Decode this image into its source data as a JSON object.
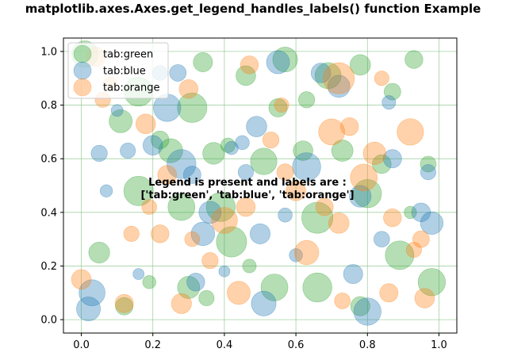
{
  "chart_data": {
    "type": "scatter",
    "title": "matplotlib.axes.Axes.get_legend_handles_labels() function Example",
    "xlabel": "",
    "ylabel": "",
    "xlim": [
      -0.05,
      1.05
    ],
    "ylim": [
      -0.05,
      1.05
    ],
    "x_ticks": [
      "0.0",
      "0.2",
      "0.4",
      "0.6",
      "0.8",
      "1.0"
    ],
    "y_ticks": [
      "0.0",
      "0.2",
      "0.4",
      "0.6",
      "0.8",
      "1.0"
    ],
    "grid": true,
    "grid_color": "#7fbf7f",
    "legend": {
      "placement": "upper left",
      "entries": [
        "tab:green",
        "tab:blue",
        "tab:orange"
      ]
    },
    "annotation": {
      "x": 0.47,
      "y": 0.48,
      "lines": [
        "Legend is present and labels are :",
        "['tab:green', 'tab:blue', 'tab:orange']"
      ]
    },
    "series": [
      {
        "name": "tab:green",
        "color": "#2ca02c",
        "alpha": 0.35,
        "points": [
          [
            0.01,
            0.99,
            6.2
          ],
          [
            0.11,
            0.74,
            5.4
          ],
          [
            0.16,
            0.85,
            6.8
          ],
          [
            0.05,
            0.25,
            4.9
          ],
          [
            0.16,
            0.48,
            6.9
          ],
          [
            0.22,
            0.67,
            4.2
          ],
          [
            0.28,
            0.42,
            6.3
          ],
          [
            0.31,
            0.79,
            6.9
          ],
          [
            0.34,
            0.96,
            4.5
          ],
          [
            0.37,
            0.62,
            5.1
          ],
          [
            0.39,
            0.42,
            6.8
          ],
          [
            0.42,
            0.29,
            7.1
          ],
          [
            0.46,
            0.91,
            4.6
          ],
          [
            0.51,
            0.59,
            6.2
          ],
          [
            0.55,
            0.79,
            4.3
          ],
          [
            0.57,
            0.97,
            5.8
          ],
          [
            0.63,
            0.82,
            3.8
          ],
          [
            0.66,
            0.38,
            7.3
          ],
          [
            0.69,
            0.91,
            6.1
          ],
          [
            0.73,
            0.63,
            5.0
          ],
          [
            0.78,
            0.95,
            4.8
          ],
          [
            0.8,
            0.47,
            6.6
          ],
          [
            0.84,
            0.58,
            4.4
          ],
          [
            0.89,
            0.24,
            6.7
          ],
          [
            0.93,
            0.97,
            4.2
          ],
          [
            0.97,
            0.58,
            3.7
          ],
          [
            0.98,
            0.14,
            6.4
          ],
          [
            0.54,
            0.12,
            6.3
          ],
          [
            0.66,
            0.12,
            6.8
          ],
          [
            0.78,
            0.05,
            4.5
          ],
          [
            0.35,
            0.08,
            3.6
          ],
          [
            0.3,
            0.12,
            5.2
          ],
          [
            0.12,
            0.05,
            4.1
          ],
          [
            0.25,
            0.63,
            5.6
          ],
          [
            0.41,
            0.65,
            3.4
          ],
          [
            0.62,
            0.63,
            4.6
          ],
          [
            0.87,
            0.85,
            3.9
          ],
          [
            0.47,
            0.2,
            3.2
          ],
          [
            0.19,
            0.14,
            3.1
          ],
          [
            0.92,
            0.4,
            2.9
          ]
        ]
      },
      {
        "name": "tab:blue",
        "color": "#1f77b4",
        "alpha": 0.35,
        "points": [
          [
            0.05,
            0.62,
            3.8
          ],
          [
            0.1,
            0.78,
            2.8
          ],
          [
            0.16,
            0.17,
            2.6
          ],
          [
            0.2,
            0.65,
            4.6
          ],
          [
            0.24,
            0.79,
            6.4
          ],
          [
            0.27,
            0.92,
            3.9
          ],
          [
            0.28,
            0.58,
            6.8
          ],
          [
            0.34,
            0.32,
            5.5
          ],
          [
            0.32,
            0.14,
            4.2
          ],
          [
            0.36,
            0.4,
            5.2
          ],
          [
            0.4,
            0.18,
            2.6
          ],
          [
            0.42,
            0.64,
            3.1
          ],
          [
            0.46,
            0.55,
            3.6
          ],
          [
            0.49,
            0.72,
            4.8
          ],
          [
            0.5,
            0.32,
            4.7
          ],
          [
            0.51,
            0.06,
            5.8
          ],
          [
            0.55,
            0.96,
            5.4
          ],
          [
            0.57,
            0.39,
            3.3
          ],
          [
            0.63,
            0.57,
            6.6
          ],
          [
            0.67,
            0.92,
            4.6
          ],
          [
            0.72,
            0.87,
            5.2
          ],
          [
            0.76,
            0.17,
            4.5
          ],
          [
            0.78,
            0.46,
            5.1
          ],
          [
            0.8,
            0.03,
            6.4
          ],
          [
            0.84,
            0.3,
            3.7
          ],
          [
            0.86,
            0.81,
            3.2
          ],
          [
            0.87,
            0.6,
            4.3
          ],
          [
            0.95,
            0.4,
            4.4
          ],
          [
            0.97,
            0.55,
            3.6
          ],
          [
            0.98,
            0.36,
            5.3
          ],
          [
            0.03,
            0.1,
            6.1
          ],
          [
            0.02,
            0.04,
            5.6
          ],
          [
            0.13,
            0.63,
            3.6
          ],
          [
            0.31,
            0.54,
            4.1
          ],
          [
            0.45,
            0.66,
            3.3
          ],
          [
            0.22,
            0.92,
            3.5
          ],
          [
            0.6,
            0.24,
            3.1
          ],
          [
            0.07,
            0.48,
            2.9
          ]
        ]
      },
      {
        "name": "tab:orange",
        "color": "#ff7f0e",
        "alpha": 0.35,
        "points": [
          [
            0.04,
            0.98,
            4.6
          ],
          [
            0.06,
            0.82,
            3.6
          ],
          [
            0.0,
            0.15,
            4.6
          ],
          [
            0.12,
            0.06,
            4.3
          ],
          [
            0.19,
            0.42,
            3.5
          ],
          [
            0.18,
            0.73,
            4.6
          ],
          [
            0.22,
            0.32,
            4.2
          ],
          [
            0.28,
            0.06,
            4.7
          ],
          [
            0.3,
            0.86,
            4.4
          ],
          [
            0.36,
            0.22,
            3.8
          ],
          [
            0.4,
            0.37,
            6.1
          ],
          [
            0.44,
            0.1,
            5.4
          ],
          [
            0.46,
            0.42,
            4.4
          ],
          [
            0.53,
            0.67,
            3.8
          ],
          [
            0.57,
            0.55,
            3.9
          ],
          [
            0.6,
            0.48,
            4.6
          ],
          [
            0.63,
            0.25,
            5.7
          ],
          [
            0.7,
            0.7,
            6.1
          ],
          [
            0.72,
            0.9,
            7.3
          ],
          [
            0.75,
            0.72,
            4.2
          ],
          [
            0.79,
            0.53,
            6.3
          ],
          [
            0.82,
            0.62,
            5.3
          ],
          [
            0.84,
            0.9,
            3.4
          ],
          [
            0.87,
            0.38,
            4.2
          ],
          [
            0.92,
            0.7,
            6.2
          ],
          [
            0.93,
            0.26,
            3.6
          ],
          [
            0.95,
            0.3,
            3.9
          ],
          [
            0.96,
            0.08,
            4.6
          ],
          [
            0.72,
            0.36,
            4.8
          ],
          [
            0.68,
            0.42,
            4.1
          ],
          [
            0.56,
            0.8,
            3.4
          ],
          [
            0.14,
            0.32,
            3.6
          ],
          [
            0.24,
            0.54,
            4.4
          ],
          [
            0.47,
            0.95,
            4.2
          ],
          [
            0.86,
            0.1,
            4.3
          ],
          [
            0.31,
            0.3,
            3.5
          ],
          [
            0.73,
            0.07,
            3.7
          ],
          [
            0.08,
            0.88,
            3.1
          ]
        ]
      }
    ]
  }
}
